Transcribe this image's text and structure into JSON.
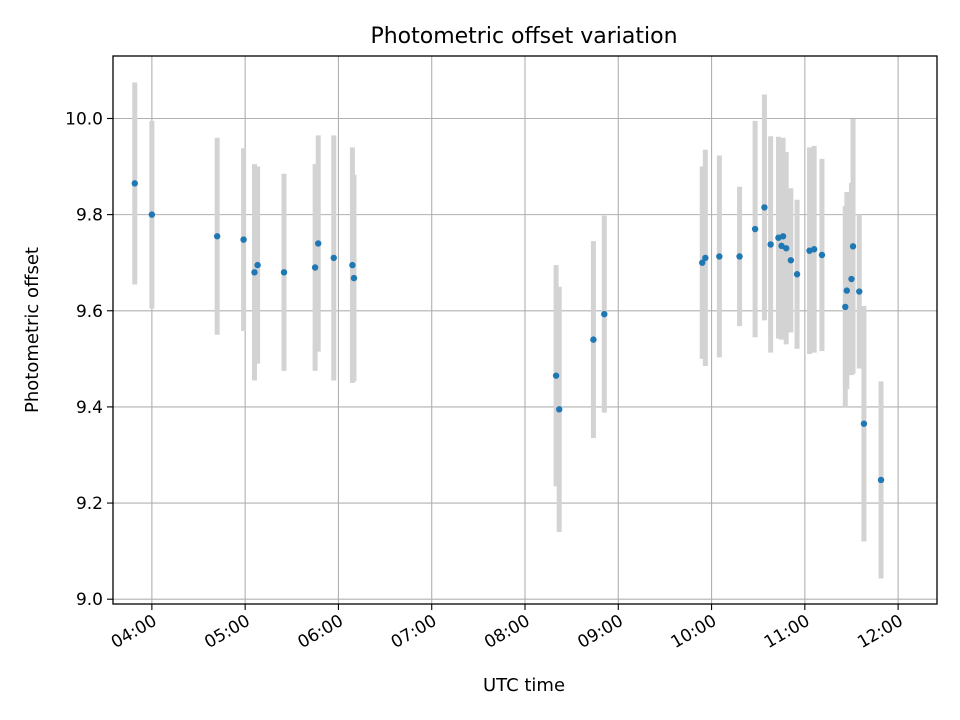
{
  "chart_data": {
    "type": "scatter",
    "title": "Photometric offset variation",
    "xlabel": "UTC time",
    "ylabel": "Photometric offset",
    "xlim": [
      "03:35",
      "12:25"
    ],
    "ylim": [
      8.99,
      10.13
    ],
    "grid": true,
    "x_ticks": [
      "04:00",
      "05:00",
      "06:00",
      "07:00",
      "08:00",
      "09:00",
      "10:00",
      "11:00",
      "12:00"
    ],
    "y_ticks": [
      "9.0",
      "9.2",
      "9.4",
      "9.6",
      "9.8",
      "10.0"
    ],
    "colors": {
      "point": "#1f77b4",
      "errorbar": "#d3d3d3",
      "grid": "#b0b0b0"
    },
    "series": [
      {
        "x": [
          "03:49",
          "04:00",
          "04:42",
          "04:59",
          "05:06",
          "05:08",
          "05:25",
          "05:45",
          "05:47",
          "05:57",
          "06:09",
          "06:10",
          "08:20",
          "08:22",
          "08:44",
          "08:51",
          "09:54",
          "09:56",
          "10:05",
          "10:18",
          "10:28",
          "10:34",
          "10:38",
          "10:43",
          "10:45",
          "10:46",
          "10:48",
          "10:51",
          "10:55",
          "11:03",
          "11:06",
          "11:11",
          "11:26",
          "11:27",
          "11:30",
          "11:31",
          "11:35",
          "11:38"
        ],
        "y": [
          9.865,
          9.8,
          9.755,
          9.748,
          9.68,
          9.695,
          9.68,
          9.69,
          9.74,
          9.71,
          9.695,
          9.668,
          9.465,
          9.395,
          9.54,
          9.593,
          9.7,
          9.71,
          9.713,
          9.713,
          9.77,
          9.815,
          9.738,
          9.752,
          9.735,
          9.755,
          9.73,
          9.705,
          9.676,
          9.725,
          9.728,
          9.716,
          9.608,
          9.642,
          9.666,
          9.734,
          9.64,
          9.365
        ],
        "yerr": [
          0.21,
          0.195,
          0.205,
          0.19,
          0.225,
          0.205,
          0.205,
          0.215,
          0.225,
          0.255,
          0.245,
          0.215,
          0.23,
          0.255,
          0.205,
          0.205,
          0.2,
          0.225,
          0.21,
          0.145,
          0.225,
          0.235,
          0.225,
          0.21,
          0.195,
          0.205,
          0.2,
          0.15,
          0.155,
          0.215,
          0.215,
          0.2,
          0.21,
          0.205,
          0.2,
          0.265,
          0.16,
          0.245
        ]
      },
      {
        "x": [
          "11:49"
        ],
        "y": [
          9.248
        ],
        "yerr": [
          0.205
        ]
      }
    ]
  }
}
